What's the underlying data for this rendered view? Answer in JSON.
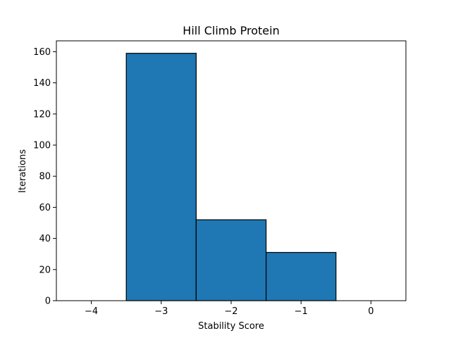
{
  "chart_data": {
    "type": "bar",
    "title": "Hill Climb Protein",
    "xlabel": "Stability Score",
    "ylabel": "Iterations",
    "bins": [
      {
        "x0": -3.5,
        "x1": -2.5,
        "value": 159
      },
      {
        "x0": -2.5,
        "x1": -1.5,
        "value": 52
      },
      {
        "x0": -1.5,
        "x1": -0.5,
        "value": 31
      }
    ],
    "xlim": [
      -4.5,
      0.5
    ],
    "ylim": [
      0,
      167
    ],
    "xticks": [
      -4,
      -3,
      -2,
      -1,
      0
    ],
    "xtick_labels": [
      "−4",
      "−3",
      "−2",
      "−1",
      "0"
    ],
    "yticks": [
      0,
      20,
      40,
      60,
      80,
      100,
      120,
      140,
      160
    ],
    "ytick_labels": [
      "0",
      "20",
      "40",
      "60",
      "80",
      "100",
      "120",
      "140",
      "160"
    ],
    "grid": false,
    "legend": "none",
    "bar_color": "#1f77b4",
    "edge_color": "#000000"
  }
}
